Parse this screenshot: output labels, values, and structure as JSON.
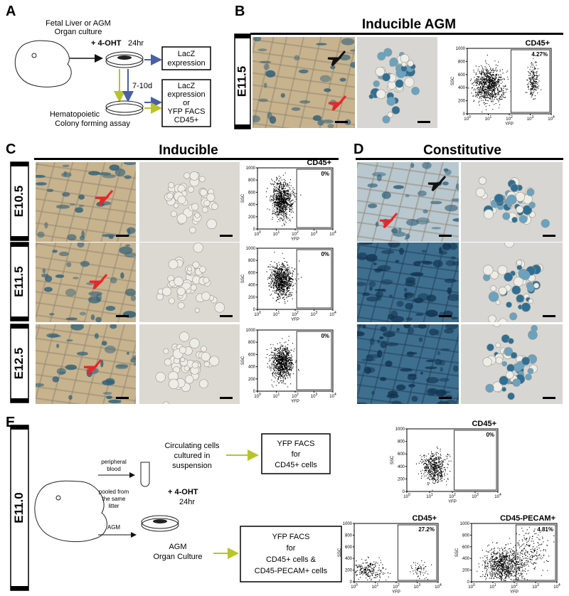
{
  "panels": {
    "A": {
      "label": "A",
      "source": "Fetal Liver or AGM",
      "culture": "Organ culture",
      "treatment": "+ 4-OHT",
      "duration": "24hr",
      "box1": [
        "LacZ",
        "expression"
      ],
      "interval": "7-10d",
      "box2": [
        "LacZ",
        "expression",
        "or",
        "YFP FACS",
        "CD45+"
      ],
      "assay1": "Hematopoietic",
      "assay2": "Colony forming assay"
    },
    "B": {
      "label": "B",
      "title": "Inducible AGM",
      "stage": "E11.5",
      "facs": {
        "gate": "CD45+",
        "percent": "4.27%"
      }
    },
    "C": {
      "label": "C",
      "title": "Inducible",
      "rows": [
        {
          "stage": "E10.5",
          "facs": {
            "gate": "CD45+",
            "percent": "0%"
          }
        },
        {
          "stage": "E11.5",
          "facs": {
            "percent": "0%"
          }
        },
        {
          "stage": "E12.5",
          "facs": {
            "percent": "0%"
          }
        }
      ]
    },
    "D": {
      "label": "D",
      "title": "Constitutive"
    },
    "E": {
      "label": "E",
      "stage": "E11.0",
      "blood": [
        "peripheral",
        "blood"
      ],
      "pooled": [
        "pooled from",
        "the same",
        "litter"
      ],
      "agm": "AGM",
      "circulating": [
        "Circulating cells",
        "cultured in",
        "suspension"
      ],
      "treatment": "+ 4-OHT",
      "duration": "24hr",
      "culture": [
        "AGM",
        "Organ Culture"
      ],
      "facs1": [
        "YFP FACS",
        "for",
        "CD45+ cells"
      ],
      "facs2": [
        "YFP FACS",
        "for",
        "CD45+ cells &",
        "CD45-PECAM+ cells"
      ],
      "plots": [
        {
          "gate": "CD45+",
          "percent": "0%"
        },
        {
          "gate": "CD45+",
          "percent": "27.2%"
        },
        {
          "gate": "CD45-PECAM+",
          "percent": "4.81%"
        }
      ]
    }
  },
  "facs_axes": {
    "y_label": "SSC",
    "x_label": "YFP",
    "y_ticks": [
      "0",
      "200",
      "400",
      "600",
      "800",
      "1000"
    ],
    "x_ticks": [
      {
        "base": "10",
        "exp": "0"
      },
      {
        "base": "10",
        "exp": "1"
      },
      {
        "base": "10",
        "exp": "2"
      },
      {
        "base": "10",
        "exp": "3"
      },
      {
        "base": "10",
        "exp": "4"
      }
    ]
  }
}
